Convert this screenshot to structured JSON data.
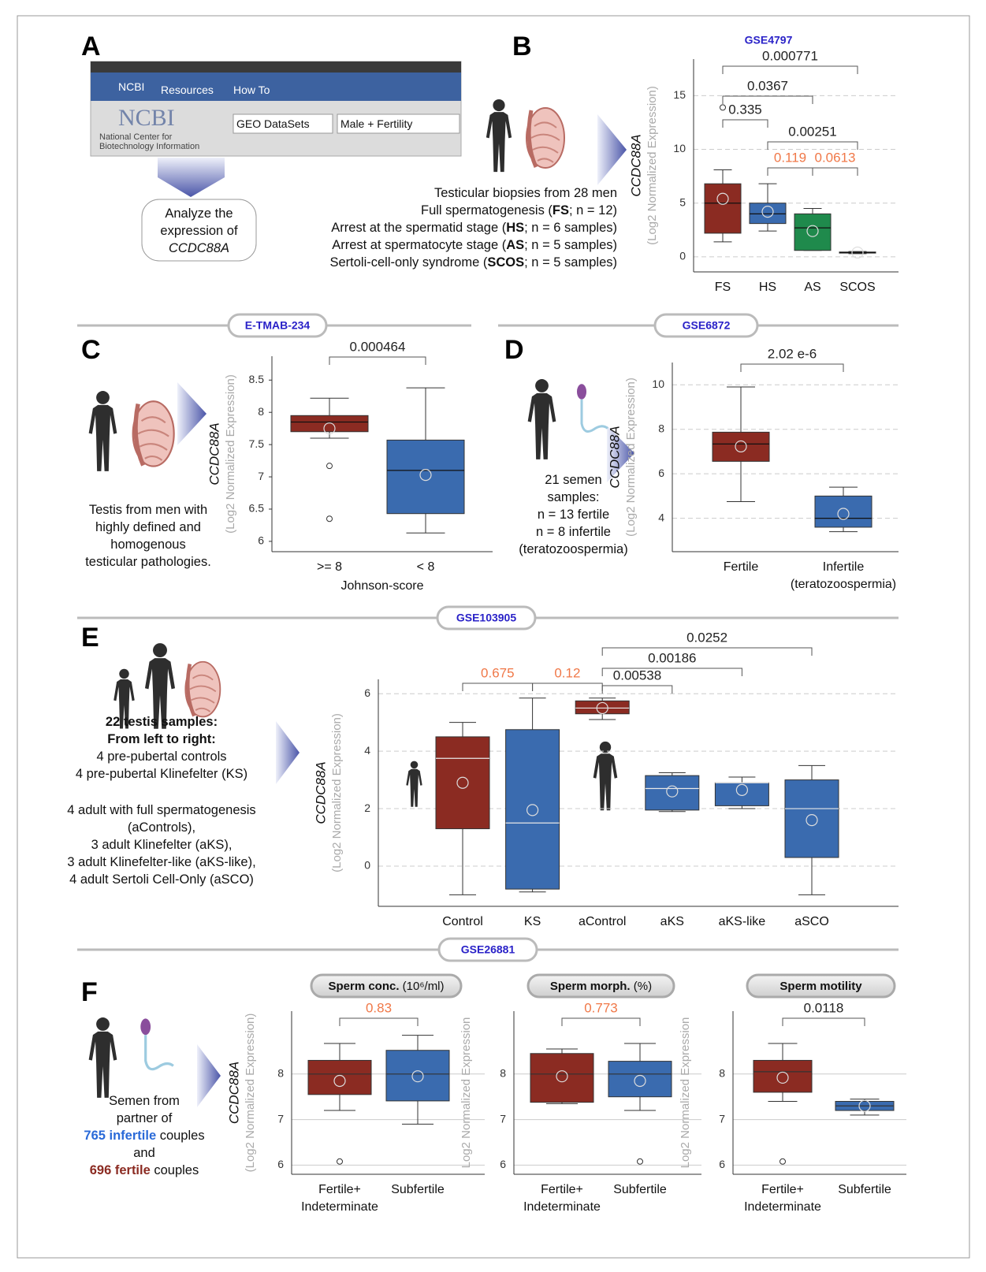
{
  "panels": {
    "letters": [
      "A",
      "B",
      "C",
      "D",
      "E",
      "F"
    ],
    "ncbi": {
      "brand": "NCBI",
      "menu": [
        "Resources",
        "How To"
      ],
      "logo": "NCBI",
      "org": [
        "National Center for",
        "Biotechnology Information"
      ],
      "select": "GEO DataSets",
      "search": "Male + Fertility"
    },
    "callout": [
      [
        "Analyze the"
      ],
      [
        "expression of"
      ],
      [
        {
          "text": "CCDC88A",
          "italic": true
        }
      ]
    ],
    "b_desc": [
      [
        "Testicular biopsies from 28 men"
      ],
      [
        "Full spermatogenesis (",
        {
          "text": "FS",
          "bold": true
        },
        "; n = 12)"
      ],
      [
        "Arrest at the spermatid stage (",
        {
          "text": "HS",
          "bold": true
        },
        "; n = 6 samples)"
      ],
      [
        "Arrest at spermatocyte stage (",
        {
          "text": "AS",
          "bold": true
        },
        "; n = 5 samples)"
      ],
      [
        "Sertoli-cell-only syndrome (",
        {
          "text": "SCOS",
          "bold": true
        },
        "; n = 5 samples)"
      ]
    ],
    "c_desc": [
      [
        "Testis from men with"
      ],
      [
        "highly defined and"
      ],
      [
        "homogenous"
      ],
      [
        "testicular pathologies."
      ]
    ],
    "d_desc": [
      [
        "21 semen"
      ],
      [
        "samples:"
      ],
      [
        "n = 13 fertile"
      ],
      [
        "n = 8 infertile"
      ],
      [
        "(teratozoospermia)"
      ]
    ],
    "e_desc_a": [
      [
        {
          "text": "22 testis samples:",
          "bold": true
        }
      ],
      [
        {
          "text": "From left to right:",
          "bold": true
        }
      ],
      [
        "4 pre-pubertal controls"
      ],
      [
        "4 pre-pubertal Klinefelter (KS)"
      ]
    ],
    "e_desc_b": [
      [
        "4 adult with full spermatogenesis"
      ],
      [
        "(aControls),"
      ],
      [
        "3 adult Klinefelter (aKS),"
      ],
      [
        "3 adult Klinefelter-like (aKS-like),"
      ],
      [
        "4 adult Sertoli Cell-Only (aSCO)"
      ]
    ],
    "f_desc": [
      [
        "Semen from"
      ],
      [
        "partner of"
      ],
      [
        {
          "text": "765 infertile",
          "bold": true,
          "color": "#2a6ad8"
        },
        " couples"
      ],
      [
        "and"
      ],
      [
        {
          "text": "696 fertile",
          "bold": true,
          "color": "#8b2b22"
        },
        " couples"
      ]
    ],
    "f_dataset": "GSE26881"
  },
  "chart_data": [
    {
      "type": "box",
      "title": "GSE4797",
      "ylabel": "CCDC88A",
      "ylabel_sub": "(Log2 Normalized Expression)",
      "categories": [
        "FS",
        "HS",
        "AS",
        "SCOS"
      ],
      "colors": [
        "#8b2b22",
        "#3a6baf",
        "#1f8a4c",
        "#3a6baf"
      ],
      "median_color": "#111",
      "boxes": [
        {
          "min": 1.4,
          "q1": 2.2,
          "median": 5.0,
          "q3": 6.8,
          "max": 8.1,
          "mean": 5.4,
          "outliers": [
            13.9
          ]
        },
        {
          "min": 2.4,
          "q1": 3.1,
          "median": 4.0,
          "q3": 5.0,
          "max": 6.8,
          "mean": 4.2,
          "outliers": []
        },
        {
          "min": 0.6,
          "q1": 0.6,
          "median": 2.7,
          "q3": 4.0,
          "max": 4.5,
          "mean": 2.4,
          "outliers": []
        },
        {
          "min": 0.3,
          "q1": 0.35,
          "median": 0.4,
          "q3": 0.45,
          "max": 0.5,
          "mean": 0.4,
          "outliers": []
        }
      ],
      "annotations": [
        {
          "from": "FS",
          "to": "SCOS",
          "label": "0.000771",
          "color": "#222"
        },
        {
          "from": "FS",
          "to": "AS",
          "label": "0.0367",
          "color": "#222"
        },
        {
          "from": "FS",
          "to": "HS",
          "label": "0.335",
          "color": "#222"
        },
        {
          "from": "HS",
          "to": "SCOS",
          "label": "0.00251",
          "color": "#222"
        },
        {
          "from": "HS",
          "to": "AS",
          "label": "0.119",
          "color": "#f07848"
        },
        {
          "from": "AS",
          "to": "SCOS",
          "label": "0.0613",
          "color": "#f07848"
        }
      ],
      "ylim": [
        -1.4,
        18.4
      ],
      "yticks": [
        0,
        5,
        10,
        15
      ],
      "grid": true,
      "grid_style": "dashed"
    },
    {
      "type": "box",
      "dataset": "E-TMAB-234",
      "ylabel": "CCDC88A",
      "ylabel_sub": "(Log2 Normalized Expression)",
      "xlabel": "Johnson-score",
      "categories": [
        ">= 8",
        "< 8"
      ],
      "colors": [
        "#8b2b22",
        "#3a6baf"
      ],
      "median_color": "#111",
      "boxes": [
        {
          "min": 7.6,
          "q1": 7.7,
          "median": 7.85,
          "q3": 7.95,
          "max": 8.22,
          "mean": 7.75,
          "outliers": [
            7.17,
            6.35
          ]
        },
        {
          "min": 6.13,
          "q1": 6.43,
          "median": 7.1,
          "q3": 7.57,
          "max": 8.38,
          "mean": 7.03,
          "outliers": []
        }
      ],
      "annotations": [
        {
          "from": ">= 8",
          "to": "< 8",
          "label": "0.000464",
          "color": "#222"
        }
      ],
      "ylim": [
        5.84,
        8.87
      ],
      "yticks": [
        6,
        6.5,
        7,
        7.5,
        8,
        8.5
      ],
      "grid": false
    },
    {
      "type": "box",
      "dataset": "GSE6872",
      "ylabel": "CCDC88A",
      "ylabel_sub": "(Log2 Normalized Expression)",
      "categories": [
        "Fertile",
        "Infertile\n(teratozoospermia)"
      ],
      "colors": [
        "#8b2b22",
        "#3a6baf"
      ],
      "median_color": "#111",
      "boxes": [
        {
          "min": 4.75,
          "q1": 6.56,
          "median": 7.34,
          "q3": 7.87,
          "max": 9.9,
          "mean": 7.23,
          "outliers": []
        },
        {
          "min": 3.4,
          "q1": 3.6,
          "median": 4.0,
          "q3": 5.0,
          "max": 5.4,
          "mean": 4.2,
          "outliers": []
        }
      ],
      "annotations": [
        {
          "from": "Fertile",
          "to": "Infertile\n(teratozoospermia)",
          "label": "2.02 e-6",
          "color": "#222"
        }
      ],
      "ylim": [
        2.5,
        11.0
      ],
      "yticks": [
        4,
        6,
        8,
        10
      ],
      "grid": true,
      "grid_style": "dashed"
    },
    {
      "type": "box",
      "dataset": "GSE103905",
      "ylabel": "CCDC88A",
      "ylabel_sub": "(Log2 Normalized Expression)",
      "categories": [
        "Control",
        "KS",
        "aControl",
        "aKS",
        "aKS-like",
        "aSCO"
      ],
      "colors": [
        "#8b2b22",
        "#3a6baf",
        "#8b2b22",
        "#3a6baf",
        "#3a6baf",
        "#3a6baf"
      ],
      "median_color": "#e8e8e8",
      "boxes": [
        {
          "min": -1.0,
          "q1": 1.3,
          "median": 3.75,
          "q3": 4.5,
          "max": 5.0,
          "mean": 2.9,
          "outliers": []
        },
        {
          "min": -0.9,
          "q1": -0.8,
          "median": 1.5,
          "q3": 4.75,
          "max": 5.85,
          "mean": 1.95,
          "outliers": []
        },
        {
          "min": 5.1,
          "q1": 5.3,
          "median": 5.5,
          "q3": 5.75,
          "max": 5.85,
          "mean": 5.5,
          "outliers": []
        },
        {
          "min": 1.9,
          "q1": 1.95,
          "median": 2.7,
          "q3": 3.15,
          "max": 3.25,
          "mean": 2.6,
          "outliers": []
        },
        {
          "min": 2.0,
          "q1": 2.1,
          "median": 2.9,
          "q3": 2.9,
          "max": 3.1,
          "mean": 2.65,
          "outliers": []
        },
        {
          "min": -1.0,
          "q1": 0.3,
          "median": 2.0,
          "q3": 3.0,
          "max": 3.5,
          "mean": 1.6,
          "outliers": []
        }
      ],
      "annotations": [
        {
          "from": "Control",
          "to": "KS",
          "label": "0.675",
          "color": "#f07848"
        },
        {
          "from": "KS",
          "to": "aControl",
          "label": "0.12",
          "color": "#f07848"
        },
        {
          "from": "aControl",
          "to": "aKS",
          "label": "0.00538",
          "color": "#222"
        },
        {
          "from": "aControl",
          "to": "aKS-like",
          "label": "0.00186",
          "color": "#222"
        },
        {
          "from": "aControl",
          "to": "aSCO",
          "label": "0.0252",
          "color": "#222"
        }
      ],
      "ylim": [
        -1.4,
        6.5
      ],
      "yticks": [
        0,
        2,
        4,
        6
      ],
      "grid": true,
      "grid_style": "dashed"
    },
    {
      "type": "box",
      "title": "Sperm conc.",
      "title_unit": "(10⁶/ml)",
      "ylabel": "CCDC88A",
      "ylabel_sub": "(Log2 Normalized Expression)",
      "categories": [
        "Fertile+\nIndeterminate",
        "Subfertile"
      ],
      "colors": [
        "#8b2b22",
        "#3a6baf"
      ],
      "median_color": "#333",
      "boxes": [
        {
          "min": 7.2,
          "q1": 7.55,
          "median": 8.0,
          "q3": 8.3,
          "max": 8.67,
          "mean": 7.85,
          "outliers": [
            6.08
          ]
        },
        {
          "min": 6.9,
          "q1": 7.41,
          "median": 8.0,
          "q3": 8.52,
          "max": 8.85,
          "mean": 7.95,
          "outliers": []
        }
      ],
      "annotations": [
        {
          "from": "Fertile+\nIndeterminate",
          "to": "Subfertile",
          "label": "0.83",
          "color": "#f07848"
        }
      ],
      "ylim": [
        5.8,
        9.38
      ],
      "yticks": [
        6,
        7,
        8
      ],
      "grid": true,
      "grid_style": "solid"
    },
    {
      "type": "box",
      "title": "Sperm morph.",
      "title_unit": "(%)",
      "ylabel_sub": "Log2 Normalized Expression",
      "categories": [
        "Fertile+\nIndeterminate",
        "Subfertile"
      ],
      "colors": [
        "#8b2b22",
        "#3a6baf"
      ],
      "median_color": "#333",
      "boxes": [
        {
          "min": 7.35,
          "q1": 7.38,
          "median": 8.0,
          "q3": 8.45,
          "max": 8.55,
          "mean": 7.95,
          "outliers": []
        },
        {
          "min": 7.2,
          "q1": 7.5,
          "median": 8.0,
          "q3": 8.28,
          "max": 8.67,
          "mean": 7.85,
          "outliers": [
            6.08
          ]
        }
      ],
      "annotations": [
        {
          "from": "Fertile+\nIndeterminate",
          "to": "Subfertile",
          "label": "0.773",
          "color": "#f07848"
        }
      ],
      "ylim": [
        5.8,
        9.38
      ],
      "yticks": [
        6,
        7,
        8
      ],
      "grid": true,
      "grid_style": "solid"
    },
    {
      "type": "box",
      "title": "Sperm motility",
      "ylabel_sub": "Log2 Normalized Expression",
      "categories": [
        "Fertile+\nIndeterminate",
        "Subfertile"
      ],
      "colors": [
        "#8b2b22",
        "#3a6baf"
      ],
      "median_color": "#333",
      "boxes": [
        {
          "min": 7.4,
          "q1": 7.6,
          "median": 8.05,
          "q3": 8.3,
          "max": 8.67,
          "mean": 7.92,
          "outliers": [
            6.08
          ]
        },
        {
          "min": 7.1,
          "q1": 7.2,
          "median": 7.3,
          "q3": 7.4,
          "max": 7.45,
          "mean": 7.3,
          "outliers": []
        }
      ],
      "annotations": [
        {
          "from": "Fertile+\nIndeterminate",
          "to": "Subfertile",
          "label": "0.0118",
          "color": "#222"
        }
      ],
      "ylim": [
        5.8,
        9.38
      ],
      "yticks": [
        6,
        7,
        8
      ],
      "grid": true,
      "grid_style": "solid"
    }
  ]
}
